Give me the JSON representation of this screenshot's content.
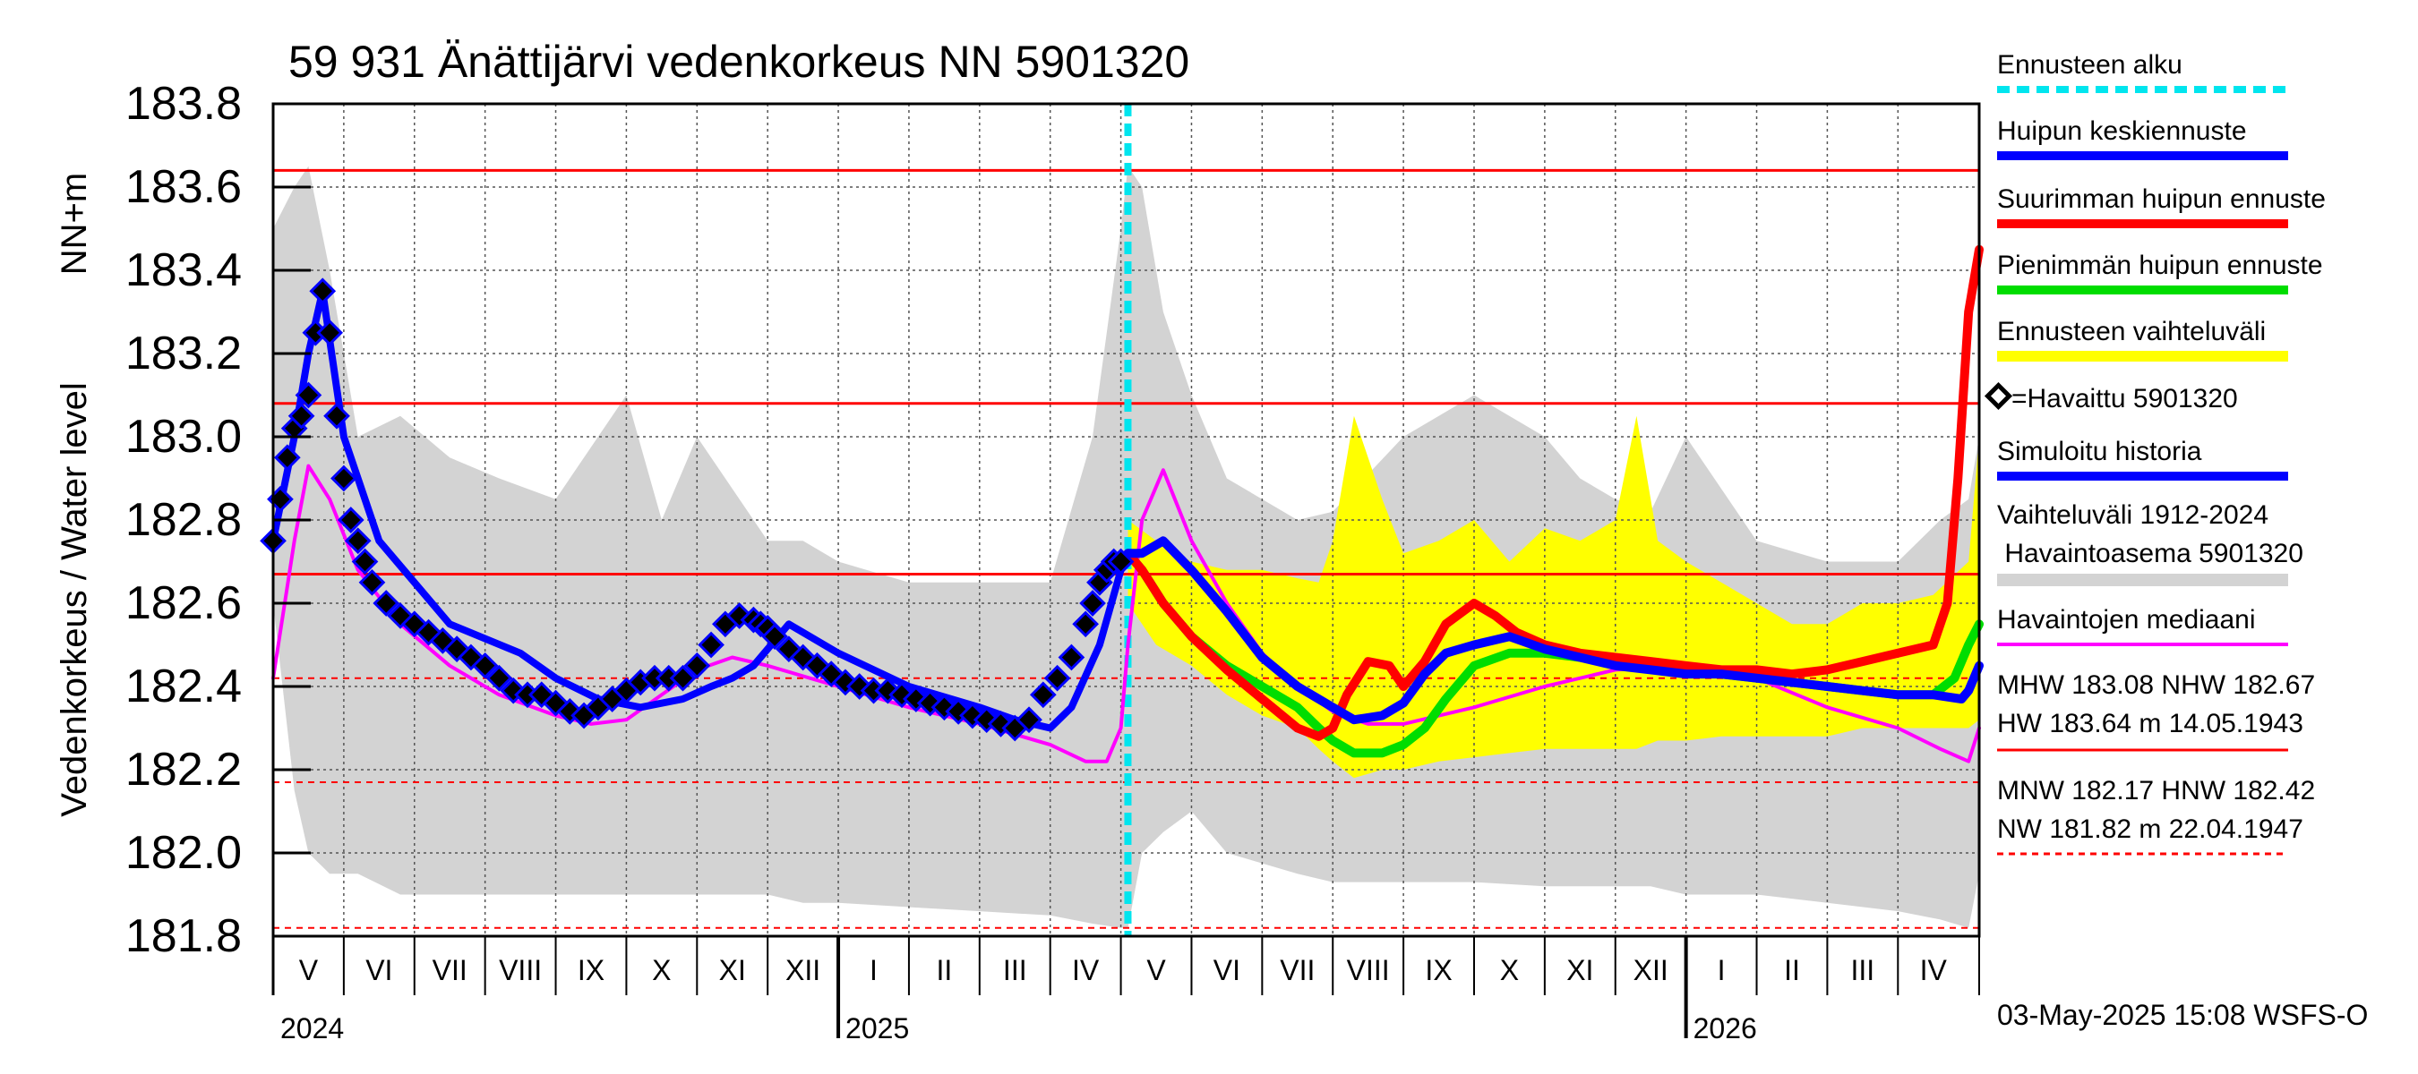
{
  "chart_data": {
    "type": "line",
    "title": "59 931 Änättijärvi vedenkorkeus NN 5901320",
    "ylabel_line1": "Vedenkorkeus / Water level",
    "ylabel_line2": "NN+m",
    "ylim": [
      181.8,
      183.8
    ],
    "yticks": [
      181.8,
      182.0,
      182.2,
      182.4,
      182.6,
      182.8,
      183.0,
      183.2,
      183.4,
      183.6,
      183.8
    ],
    "ytick_labels": [
      "181.8",
      "182.0",
      "182.2",
      "182.4",
      "182.6",
      "182.8",
      "183.0",
      "183.2",
      "183.4",
      "183.6",
      "183.8"
    ],
    "xlim_months": [
      0,
      24.15
    ],
    "month_labels": [
      "V",
      "VI",
      "VII",
      "VIII",
      "IX",
      "X",
      "XI",
      "XII",
      "I",
      "II",
      "III",
      "IV",
      "V",
      "VI",
      "VII",
      "VIII",
      "IX",
      "X",
      "XI",
      "XII",
      "I",
      "II",
      "III",
      "IV"
    ],
    "years": [
      {
        "label": "2024",
        "at_month": 0
      },
      {
        "label": "2025",
        "at_month": 8
      },
      {
        "label": "2026",
        "at_month": 20
      }
    ],
    "forecast_start_month": 12.1,
    "reference_lines": [
      {
        "name": "HW",
        "value": 183.64,
        "style": "solid"
      },
      {
        "name": "MHW",
        "value": 183.08,
        "style": "solid"
      },
      {
        "name": "NHW",
        "value": 182.67,
        "style": "solid"
      },
      {
        "name": "HNW",
        "value": 182.42,
        "style": "dashed"
      },
      {
        "name": "MNW",
        "value": 182.17,
        "style": "dashed"
      },
      {
        "name": "NW",
        "value": 181.82,
        "style": "dashed"
      }
    ],
    "series": [
      {
        "name": "Vaihteluväli 1912-2024 Havaintoasema 5901320",
        "type": "band",
        "color": "#d3d3d3",
        "x": [
          0,
          0.3,
          0.5,
          0.8,
          1.2,
          1.8,
          2.5,
          3.2,
          4.0,
          5.0,
          5.5,
          6.0,
          7.0,
          7.5,
          8.0,
          9.0,
          10.0,
          11.0,
          11.6,
          12.0,
          12.1,
          12.3,
          12.6,
          13.0,
          13.5,
          14.5,
          15.0,
          16.0,
          16.5,
          17.0,
          18.0,
          18.5,
          19.0,
          19.5,
          20.0,
          21.0,
          22.0,
          23.0,
          23.6,
          24.0,
          24.15
        ],
        "low": [
          182.6,
          182.15,
          182.0,
          181.95,
          181.95,
          181.9,
          181.9,
          181.9,
          181.9,
          181.9,
          181.9,
          181.9,
          181.9,
          181.88,
          181.88,
          181.87,
          181.86,
          181.85,
          181.83,
          181.82,
          181.82,
          182.0,
          182.05,
          182.1,
          182.0,
          181.95,
          181.93,
          181.93,
          181.93,
          181.93,
          181.92,
          181.92,
          181.92,
          181.92,
          181.9,
          181.9,
          181.88,
          181.86,
          181.84,
          181.82,
          181.95
        ],
        "high": [
          183.5,
          183.6,
          183.65,
          183.4,
          183.0,
          183.05,
          182.95,
          182.9,
          182.85,
          183.1,
          182.8,
          183.0,
          182.75,
          182.75,
          182.7,
          182.65,
          182.65,
          182.65,
          183.0,
          183.5,
          183.65,
          183.6,
          183.3,
          183.1,
          182.9,
          182.8,
          182.82,
          183.0,
          183.05,
          183.1,
          183.0,
          182.9,
          182.85,
          182.82,
          183.0,
          182.75,
          182.7,
          182.7,
          182.8,
          182.85,
          183.0
        ]
      },
      {
        "name": "Ennusteen vaihteluväli",
        "type": "band",
        "color": "#ffff00",
        "x": [
          12.1,
          12.5,
          13.0,
          13.5,
          14.0,
          14.5,
          14.8,
          15.0,
          15.3,
          15.7,
          16.0,
          16.5,
          17.0,
          17.5,
          18.0,
          18.5,
          19.0,
          19.3,
          19.6,
          20.0,
          20.5,
          21.0,
          21.5,
          22.0,
          22.5,
          23.0,
          23.5,
          24.0,
          24.15
        ],
        "low": [
          182.6,
          182.5,
          182.45,
          182.38,
          182.33,
          182.3,
          182.25,
          182.22,
          182.18,
          182.2,
          182.2,
          182.22,
          182.23,
          182.24,
          182.25,
          182.25,
          182.25,
          182.25,
          182.27,
          182.27,
          182.28,
          182.28,
          182.28,
          182.28,
          182.3,
          182.3,
          182.3,
          182.3,
          182.32
        ],
        "high": [
          182.8,
          182.75,
          182.7,
          182.68,
          182.68,
          182.66,
          182.65,
          182.75,
          183.05,
          182.85,
          182.72,
          182.75,
          182.8,
          182.7,
          182.78,
          182.75,
          182.8,
          183.05,
          182.75,
          182.7,
          182.65,
          182.6,
          182.55,
          182.55,
          182.6,
          182.6,
          182.62,
          182.7,
          183.0
        ]
      },
      {
        "name": "Havaintojen mediaani",
        "type": "line",
        "color": "#ff00ff",
        "x": [
          0,
          0.3,
          0.5,
          0.8,
          1.2,
          1.8,
          2.5,
          3.2,
          4.0,
          4.5,
          5.0,
          5.5,
          6.0,
          6.5,
          7.0,
          8.0,
          9.0,
          10.0,
          11.0,
          11.5,
          11.8,
          12.0,
          12.1,
          12.3,
          12.6,
          13.0,
          13.5,
          14.0,
          14.5,
          15.0,
          15.5,
          16.0,
          17.0,
          18.0,
          19.0,
          20.0,
          21.0,
          22.0,
          23.0,
          23.6,
          24.0,
          24.15
        ],
        "y": [
          182.42,
          182.75,
          182.93,
          182.85,
          182.68,
          182.55,
          182.45,
          182.38,
          182.33,
          182.31,
          182.32,
          182.38,
          182.44,
          182.47,
          182.45,
          182.4,
          182.35,
          182.31,
          182.26,
          182.22,
          182.22,
          182.3,
          182.5,
          182.8,
          182.92,
          182.75,
          182.6,
          182.48,
          182.4,
          182.34,
          182.31,
          182.31,
          182.35,
          182.4,
          182.44,
          182.45,
          182.42,
          182.35,
          182.3,
          182.25,
          182.22,
          182.3
        ]
      },
      {
        "name": "Simuloitu historia",
        "type": "line",
        "color": "#0000ff",
        "x": [
          0,
          0.3,
          0.5,
          0.7,
          1.0,
          1.5,
          2.5,
          3.5,
          4.0,
          4.6,
          5.2,
          5.8,
          6.2,
          6.5,
          6.8,
          7.3,
          8.0,
          9.0,
          10.0,
          10.5,
          11.0,
          11.3,
          11.7,
          12.0,
          12.1
        ],
        "y": [
          182.75,
          183.0,
          183.2,
          183.35,
          183.0,
          182.75,
          182.55,
          182.48,
          182.42,
          182.37,
          182.35,
          182.37,
          182.4,
          182.42,
          182.45,
          182.55,
          182.48,
          182.4,
          182.35,
          182.32,
          182.3,
          182.35,
          182.5,
          182.68,
          182.7
        ]
      },
      {
        "name": "Havaittu 5901320",
        "type": "scatter",
        "color": "#000000",
        "x": [
          0,
          0.1,
          0.2,
          0.3,
          0.4,
          0.5,
          0.6,
          0.7,
          0.8,
          0.9,
          1.0,
          1.1,
          1.2,
          1.3,
          1.4,
          1.6,
          1.8,
          2.0,
          2.2,
          2.4,
          2.6,
          2.8,
          3.0,
          3.2,
          3.4,
          3.6,
          3.8,
          4.0,
          4.2,
          4.4,
          4.6,
          4.8,
          5.0,
          5.2,
          5.4,
          5.6,
          5.8,
          6.0,
          6.2,
          6.4,
          6.6,
          6.8,
          6.9,
          7.0,
          7.1,
          7.3,
          7.5,
          7.7,
          7.9,
          8.1,
          8.3,
          8.5,
          8.7,
          8.9,
          9.1,
          9.3,
          9.5,
          9.7,
          9.9,
          10.1,
          10.3,
          10.5,
          10.7,
          10.9,
          11.1,
          11.3,
          11.5,
          11.6,
          11.7,
          11.8,
          11.9,
          12.0
        ],
        "y": [
          182.75,
          182.85,
          182.95,
          183.02,
          183.05,
          183.1,
          183.25,
          183.35,
          183.25,
          183.05,
          182.9,
          182.8,
          182.75,
          182.7,
          182.65,
          182.6,
          182.57,
          182.55,
          182.53,
          182.51,
          182.49,
          182.47,
          182.45,
          182.42,
          182.39,
          182.38,
          182.38,
          182.36,
          182.34,
          182.33,
          182.35,
          182.37,
          182.39,
          182.41,
          182.42,
          182.42,
          182.42,
          182.45,
          182.5,
          182.55,
          182.57,
          182.56,
          182.55,
          182.54,
          182.52,
          182.49,
          182.47,
          182.45,
          182.43,
          182.41,
          182.4,
          182.39,
          182.39,
          182.38,
          182.37,
          182.36,
          182.35,
          182.34,
          182.33,
          182.32,
          182.31,
          182.3,
          182.32,
          182.38,
          182.42,
          182.47,
          182.55,
          182.6,
          182.65,
          182.68,
          182.7,
          182.7
        ]
      },
      {
        "name": "Pienimmän huipun ennuste",
        "type": "line",
        "color": "#00dd00",
        "x": [
          12.1,
          12.3,
          12.6,
          13.0,
          13.5,
          14.0,
          14.5,
          14.8,
          15.0,
          15.3,
          15.7,
          16.0,
          16.3,
          16.6,
          17.0,
          17.5,
          18.0,
          18.5,
          19.0,
          19.5,
          20.0,
          20.5,
          21.0,
          21.5,
          22.0,
          22.5,
          23.0,
          23.5,
          23.8,
          24.0,
          24.15
        ],
        "y": [
          182.72,
          182.68,
          182.6,
          182.52,
          182.45,
          182.4,
          182.35,
          182.3,
          182.27,
          182.24,
          182.24,
          182.26,
          182.3,
          182.37,
          182.45,
          182.48,
          182.48,
          182.47,
          182.46,
          182.45,
          182.44,
          182.43,
          182.42,
          182.41,
          182.4,
          182.39,
          182.38,
          182.38,
          182.42,
          182.5,
          182.55
        ]
      },
      {
        "name": "Suurimman huipun ennuste",
        "type": "line",
        "color": "#ff0000",
        "x": [
          12.1,
          12.3,
          12.6,
          13.0,
          13.5,
          14.0,
          14.5,
          14.8,
          15.0,
          15.2,
          15.5,
          15.8,
          16.0,
          16.3,
          16.6,
          17.0,
          17.3,
          17.6,
          18.0,
          18.5,
          19.0,
          19.5,
          20.0,
          20.5,
          21.0,
          21.5,
          22.0,
          22.5,
          23.0,
          23.5,
          23.7,
          23.85,
          24.0,
          24.15
        ],
        "y": [
          182.72,
          182.68,
          182.6,
          182.52,
          182.44,
          182.37,
          182.3,
          182.28,
          182.3,
          182.38,
          182.46,
          182.45,
          182.4,
          182.46,
          182.55,
          182.6,
          182.57,
          182.53,
          182.5,
          182.48,
          182.47,
          182.46,
          182.45,
          182.44,
          182.44,
          182.43,
          182.44,
          182.46,
          182.48,
          182.5,
          182.6,
          182.9,
          183.3,
          183.45
        ]
      },
      {
        "name": "Huipun keskiennuste",
        "type": "line",
        "color": "#0000ff",
        "x": [
          12.1,
          12.3,
          12.6,
          13.0,
          13.5,
          14.0,
          14.5,
          15.0,
          15.3,
          15.7,
          16.0,
          16.3,
          16.6,
          17.0,
          17.5,
          18.0,
          18.5,
          19.0,
          19.5,
          20.0,
          20.5,
          21.0,
          21.5,
          22.0,
          22.5,
          23.0,
          23.5,
          23.9,
          24.0,
          24.15
        ],
        "y": [
          182.72,
          182.72,
          182.75,
          182.68,
          182.58,
          182.47,
          182.4,
          182.35,
          182.32,
          182.33,
          182.36,
          182.43,
          182.48,
          182.5,
          182.52,
          182.49,
          182.47,
          182.45,
          182.44,
          182.43,
          182.43,
          182.42,
          182.41,
          182.4,
          182.39,
          182.38,
          182.38,
          182.37,
          182.39,
          182.45
        ]
      }
    ]
  },
  "legend": {
    "forecast_start": "Ennusteen alku",
    "mean_forecast": "Huipun keskiennuste",
    "max_forecast": "Suurimman huipun ennuste",
    "min_forecast": "Pienimmän huipun ennuste",
    "forecast_range": "Ennusteen vaihteluväli",
    "observed": "=Havaittu 5901320",
    "simulated": "Simuloitu historia",
    "range_line1": "Vaihteluväli 1912-2024",
    "range_line2": " Havaintoasema 5901320",
    "median": "Havaintojen mediaani",
    "stats_high_line1": "MHW 183.08 NHW 182.67",
    "stats_high_line2": "HW 183.64 m 14.05.1943",
    "stats_low_line1": "MNW 182.17 HNW 182.42",
    "stats_low_line2": "NW 181.82 m 22.04.1947"
  },
  "footer": {
    "timestamp": "03-May-2025 15:08 WSFS-O"
  },
  "colors": {
    "forecast_start": "#00e5ee",
    "mean_forecast": "#0000ff",
    "max_forecast": "#ff0000",
    "min_forecast": "#00dd00",
    "forecast_range": "#ffff00",
    "simulated": "#0000ff",
    "range": "#d3d3d3",
    "median": "#ff00ff",
    "reference": "#ff0000",
    "observed": "#000000"
  }
}
